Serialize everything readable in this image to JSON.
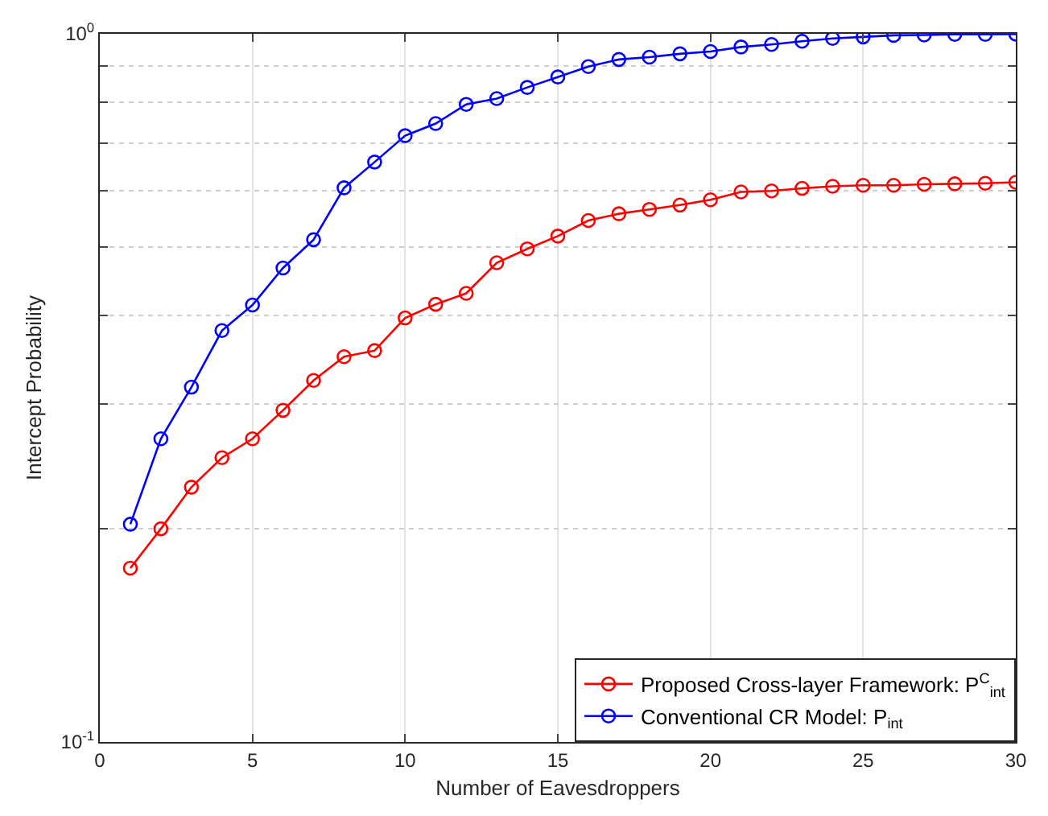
{
  "chart_data": {
    "type": "line",
    "xlabel": "Number of Eavesdroppers",
    "ylabel": "Intercept Probability",
    "x": [
      1,
      2,
      3,
      4,
      5,
      6,
      7,
      8,
      9,
      10,
      11,
      12,
      13,
      14,
      15,
      16,
      17,
      18,
      19,
      20,
      21,
      22,
      23,
      24,
      25,
      26,
      27,
      28,
      29,
      30
    ],
    "series": [
      {
        "name": "Proposed Cross-layer Framework: P$^{C}$$_{int}$",
        "color": "#ff0000",
        "values": [
          0.176,
          0.2,
          0.229,
          0.252,
          0.268,
          0.294,
          0.324,
          0.35,
          0.357,
          0.397,
          0.415,
          0.43,
          0.475,
          0.497,
          0.518,
          0.545,
          0.557,
          0.565,
          0.573,
          0.583,
          0.598,
          0.6,
          0.605,
          0.609,
          0.611,
          0.611,
          0.613,
          0.614,
          0.615,
          0.617
        ]
      },
      {
        "name": "Conventional CR Model: P$_{int}$",
        "color": "#0000ff",
        "values": [
          0.203,
          0.268,
          0.317,
          0.381,
          0.414,
          0.467,
          0.512,
          0.606,
          0.659,
          0.718,
          0.747,
          0.795,
          0.81,
          0.84,
          0.869,
          0.899,
          0.92,
          0.927,
          0.937,
          0.944,
          0.958,
          0.966,
          0.976,
          0.985,
          0.99,
          0.995,
          0.996,
          0.998,
          0.998,
          0.999
        ]
      }
    ],
    "xlim": [
      0,
      30
    ],
    "xticks": [
      0,
      5,
      10,
      15,
      20,
      25,
      30
    ],
    "ylim": [
      0.1,
      1
    ],
    "yticks": [
      {
        "value": 0.1,
        "label": "10$^{-1}$"
      },
      {
        "value": 0.2,
        "label": null
      },
      {
        "value": 0.3,
        "label": null
      },
      {
        "value": 0.4,
        "label": null
      },
      {
        "value": 0.5,
        "label": null
      },
      {
        "value": 0.6,
        "label": null
      },
      {
        "value": 0.7,
        "label": null
      },
      {
        "value": 0.8,
        "label": null
      },
      {
        "value": 0.9,
        "label": null
      },
      {
        "value": 1,
        "label": "10$^{0}$"
      }
    ],
    "log": "y",
    "grid": true,
    "legend": "bottom right",
    "marker": "circle",
    "line_style": "solid"
  }
}
